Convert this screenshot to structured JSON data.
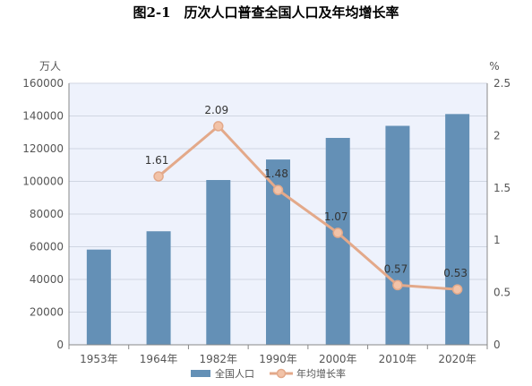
{
  "chart_data": {
    "type": "bar+line",
    "title": "图2-1　历次人口普查全国人口及年均增长率",
    "categories": [
      "1953年",
      "1964年",
      "1982年",
      "1990年",
      "2000年",
      "2010年",
      "2020年"
    ],
    "left_unit": "万人",
    "right_unit": "%",
    "ylim_left": [
      0,
      160000
    ],
    "yticks_left": [
      "0",
      "20000",
      "40000",
      "60000",
      "80000",
      "100000",
      "120000",
      "140000",
      "160000"
    ],
    "ylim_right": [
      0,
      2.5
    ],
    "yticks_right": [
      "0",
      "0.5",
      "1",
      "1.5",
      "2",
      "2.5"
    ],
    "grid": true,
    "legend_position": "bottom",
    "series": [
      {
        "name": "全国人口",
        "kind": "bar",
        "axis": "left",
        "color": "#6490b6",
        "values": [
          58260,
          69458,
          100818,
          113368,
          126583,
          133972,
          141178
        ]
      },
      {
        "name": "年均增长率",
        "kind": "line",
        "axis": "right",
        "color": "#e3a98a",
        "values": [
          null,
          1.61,
          2.09,
          1.48,
          1.07,
          0.57,
          0.53
        ],
        "labels": [
          "",
          "1.61",
          "2.09",
          "1.48",
          "1.07",
          "0.57",
          "0.53"
        ]
      }
    ]
  }
}
